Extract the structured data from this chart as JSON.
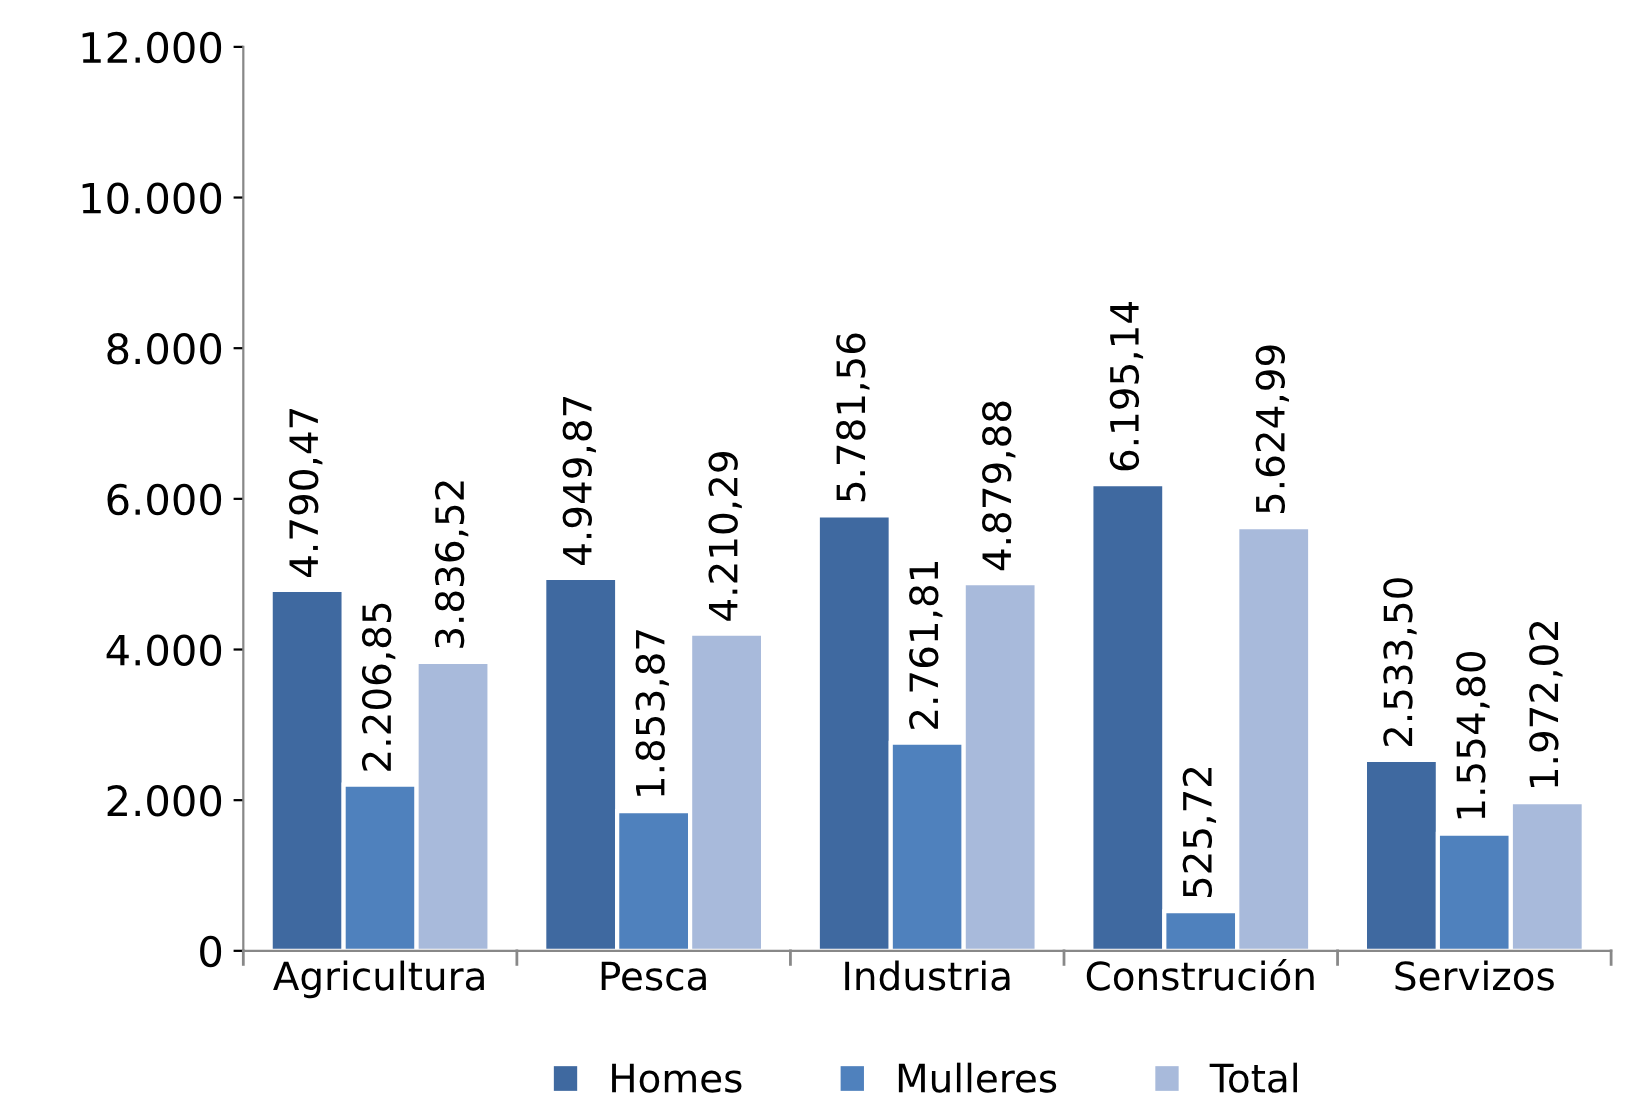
{
  "chart_data": {
    "type": "bar",
    "categories": [
      "Agricultura",
      "Pesca",
      "Industria",
      "Construción",
      "Servizos"
    ],
    "series": [
      {
        "name": "Homes",
        "color": "#3f69a0",
        "values": [
          4790.47,
          4949.87,
          5781.56,
          6195.14,
          2533.5
        ],
        "value_labels": [
          "4.790,47",
          "4.949,87",
          "5.781,56",
          "6.195,14",
          "2.533,50"
        ]
      },
      {
        "name": "Mulleres",
        "color": "#4f81bd",
        "values": [
          2206.85,
          1853.87,
          2761.81,
          525.72,
          1554.8
        ],
        "value_labels": [
          "2.206,85",
          "1.853,87",
          "2.761,81",
          "525,72",
          "1.554,80"
        ]
      },
      {
        "name": "Total",
        "color": "#a8badb",
        "values": [
          3836.52,
          4210.29,
          4879.88,
          5624.99,
          1972.02
        ],
        "value_labels": [
          "3.836,52",
          "4.210,29",
          "4.879,88",
          "5.624,99",
          "1.972,02"
        ]
      }
    ],
    "ylim": [
      0,
      12000
    ],
    "yticks": [
      {
        "value": 0,
        "label": "0"
      },
      {
        "value": 2000,
        "label": "2.000"
      },
      {
        "value": 4000,
        "label": "4.000"
      },
      {
        "value": 6000,
        "label": "6.000"
      },
      {
        "value": 8000,
        "label": "8.000"
      },
      {
        "value": 10000,
        "label": "10.000"
      },
      {
        "value": 12000,
        "label": "12.000"
      }
    ],
    "grid": false,
    "legend": "bottom"
  }
}
